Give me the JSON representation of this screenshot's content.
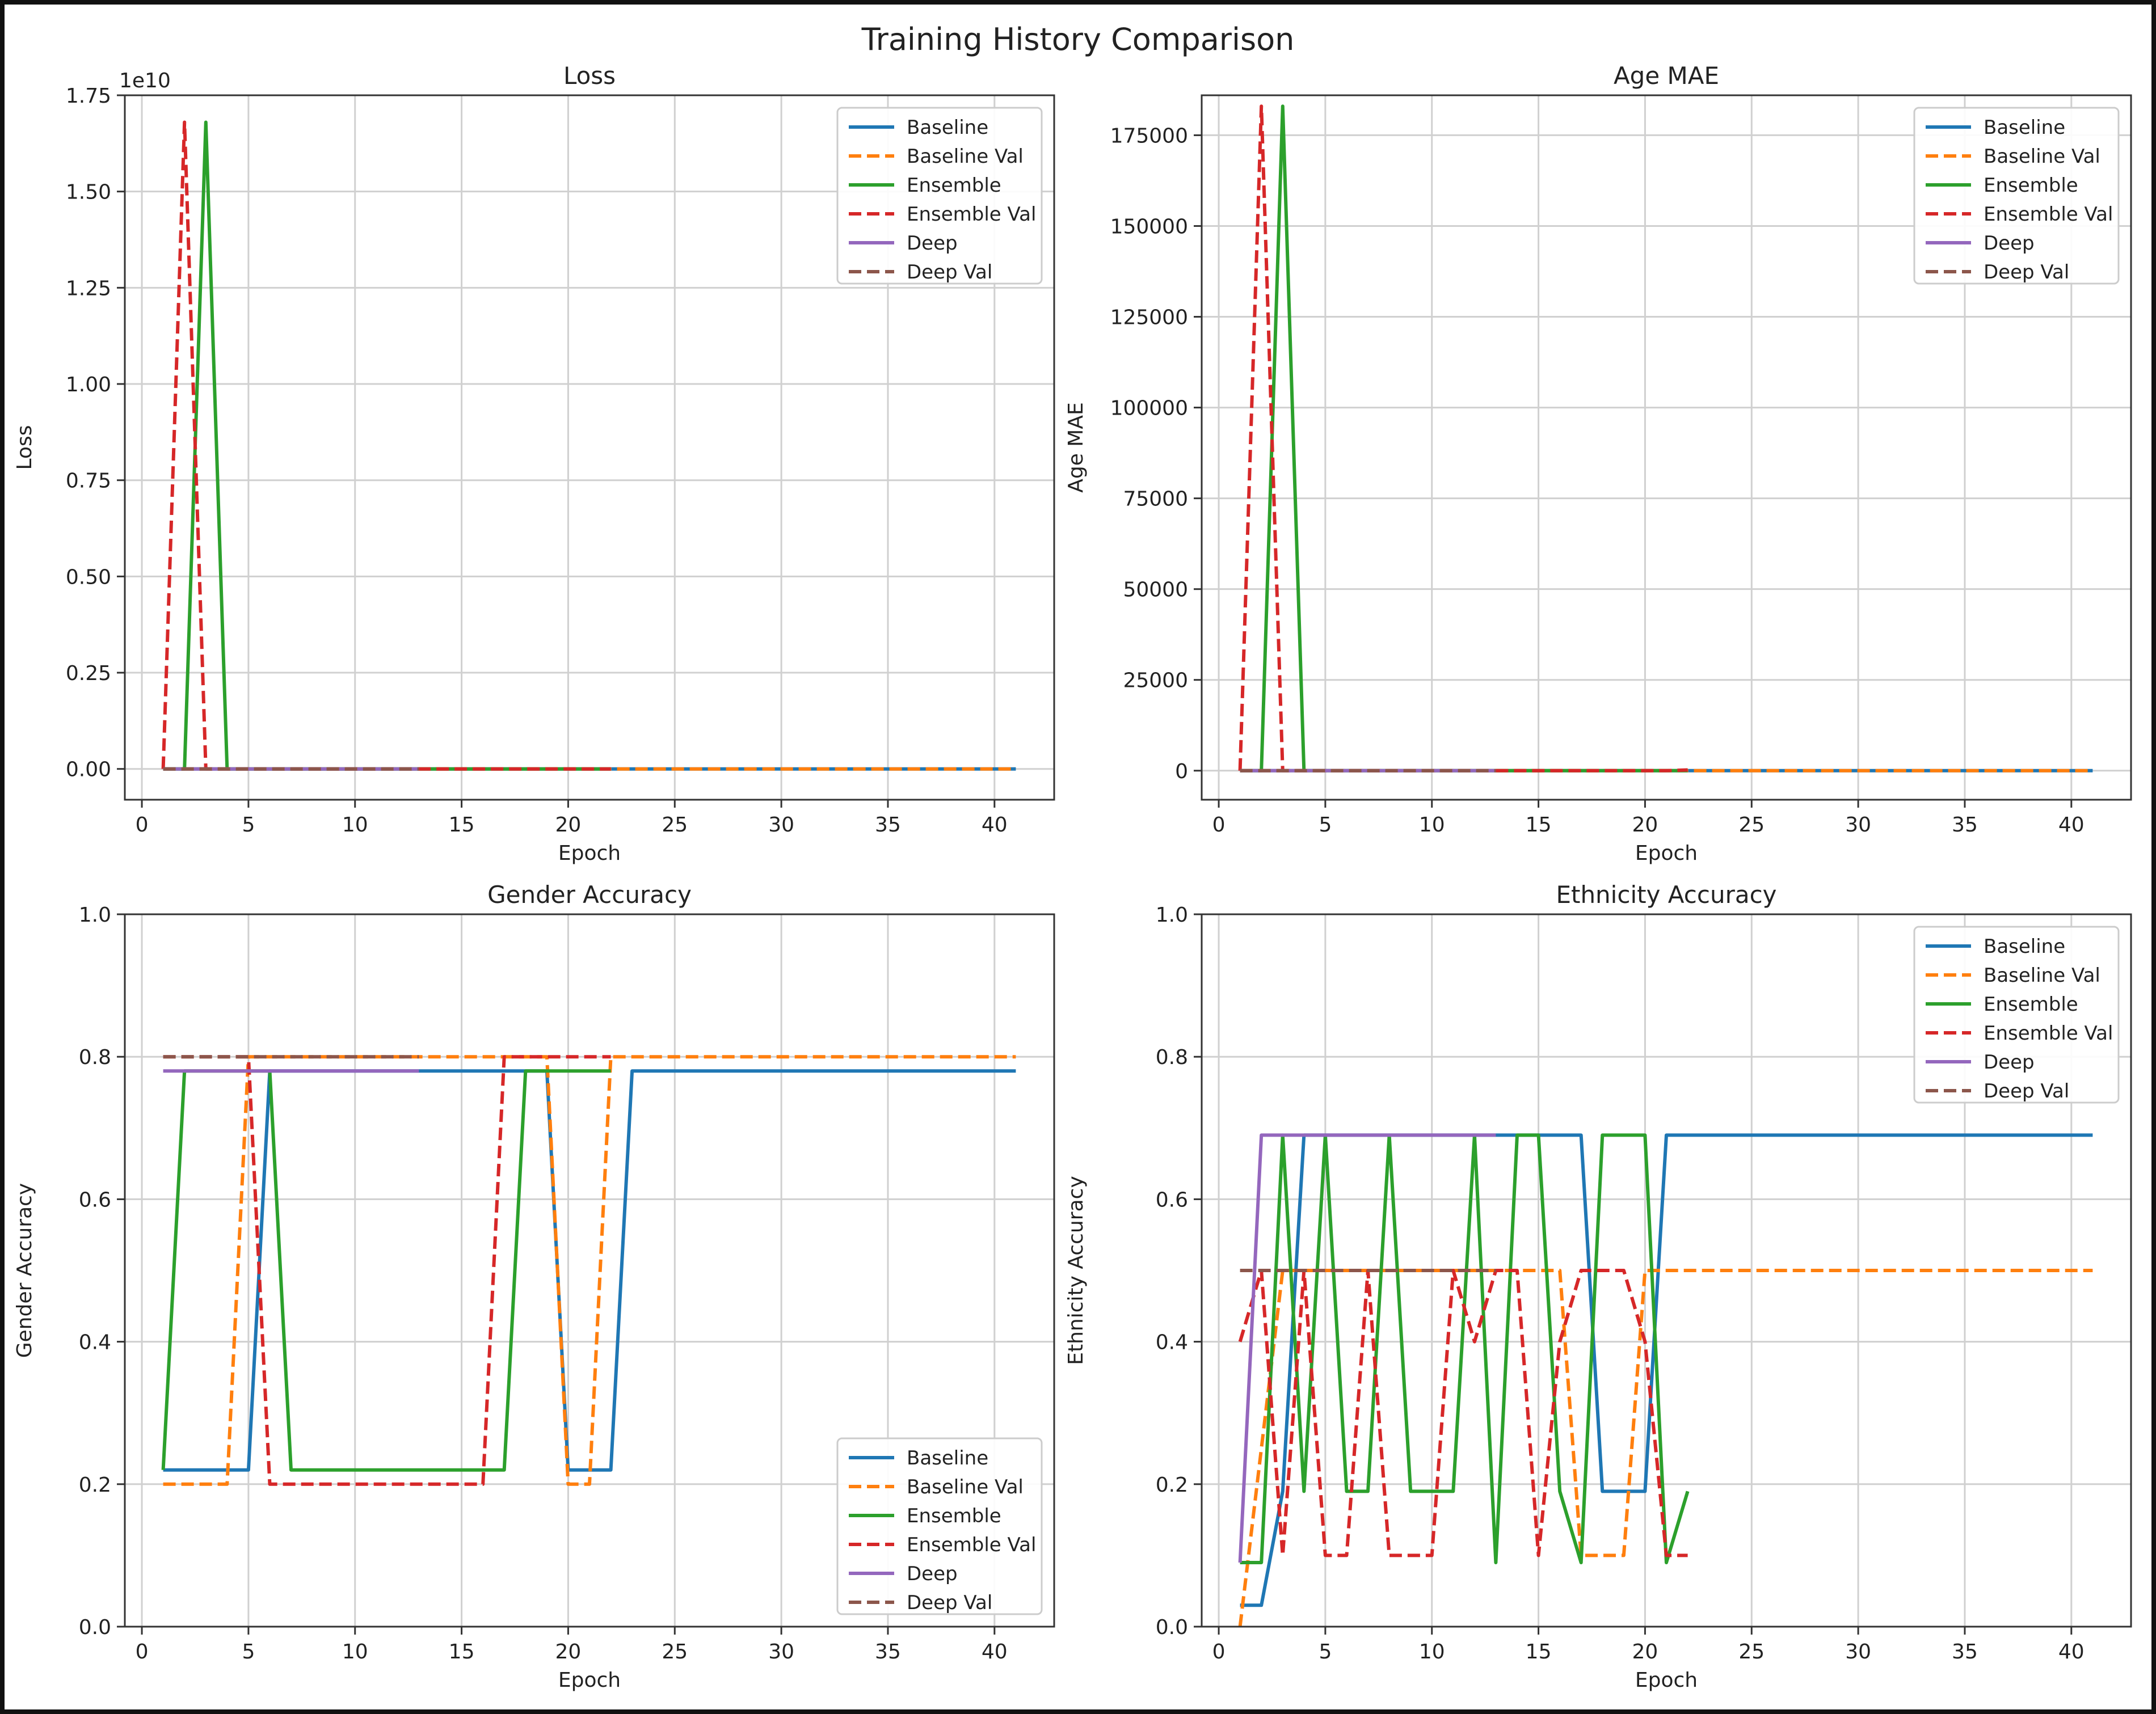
{
  "figure": {
    "title": "Training History Comparison"
  },
  "colors": {
    "Baseline": "#1f77b4",
    "Baseline Val": "#ff7f0e",
    "Ensemble": "#2ca02c",
    "Ensemble Val": "#d62728",
    "Deep": "#9467bd",
    "Deep Val": "#8c564b"
  },
  "chart_data": [
    {
      "type": "line",
      "title": "Loss",
      "xlabel": "Epoch",
      "ylabel": "Loss",
      "scale_label": "1e10",
      "xlim": [
        -0.8,
        42.8
      ],
      "ylim": [
        -0.08,
        1.75
      ],
      "xticks": [
        0,
        5,
        10,
        15,
        20,
        25,
        30,
        35,
        40
      ],
      "yticks": [
        0.0,
        0.25,
        0.5,
        0.75,
        1.0,
        1.25,
        1.5,
        1.75
      ],
      "ytick_labels": [
        "0.00",
        "0.25",
        "0.50",
        "0.75",
        "1.00",
        "1.25",
        "1.50",
        "1.75"
      ],
      "grid": true,
      "legend": "top-right",
      "series": [
        {
          "name": "Baseline",
          "dashed": false,
          "x": [
            1,
            41
          ],
          "y": [
            0,
            0
          ]
        },
        {
          "name": "Baseline Val",
          "dashed": true,
          "x": [
            1,
            41
          ],
          "y": [
            0,
            0
          ]
        },
        {
          "name": "Ensemble",
          "dashed": false,
          "x": [
            1,
            2,
            3,
            4,
            22
          ],
          "y": [
            0,
            0,
            1.68,
            0,
            0
          ]
        },
        {
          "name": "Ensemble Val",
          "dashed": true,
          "x": [
            1,
            2,
            3,
            22
          ],
          "y": [
            0,
            1.68,
            0,
            0
          ]
        },
        {
          "name": "Deep",
          "dashed": false,
          "x": [
            1,
            13
          ],
          "y": [
            0,
            0
          ]
        },
        {
          "name": "Deep Val",
          "dashed": true,
          "x": [
            1,
            13
          ],
          "y": [
            0,
            0
          ]
        }
      ]
    },
    {
      "type": "line",
      "title": "Age MAE",
      "xlabel": "Epoch",
      "ylabel": "Age MAE",
      "xlim": [
        -0.8,
        42.8
      ],
      "ylim": [
        -8000,
        186000
      ],
      "xticks": [
        0,
        5,
        10,
        15,
        20,
        25,
        30,
        35,
        40
      ],
      "yticks": [
        0,
        25000,
        50000,
        75000,
        100000,
        125000,
        150000,
        175000
      ],
      "ytick_labels": [
        "0",
        "25000",
        "50000",
        "75000",
        "100000",
        "125000",
        "150000",
        "175000"
      ],
      "grid": true,
      "legend": "top-right",
      "series": [
        {
          "name": "Baseline",
          "dashed": false,
          "x": [
            1,
            41
          ],
          "y": [
            0,
            0
          ]
        },
        {
          "name": "Baseline Val",
          "dashed": true,
          "x": [
            1,
            41
          ],
          "y": [
            0,
            0
          ]
        },
        {
          "name": "Ensemble",
          "dashed": false,
          "x": [
            1,
            2,
            3,
            4,
            22
          ],
          "y": [
            0,
            0,
            183000,
            0,
            0
          ]
        },
        {
          "name": "Ensemble Val",
          "dashed": true,
          "x": [
            1,
            2,
            3,
            21,
            22
          ],
          "y": [
            0,
            183000,
            0,
            0,
            200
          ]
        },
        {
          "name": "Deep",
          "dashed": false,
          "x": [
            1,
            13
          ],
          "y": [
            0,
            0
          ]
        },
        {
          "name": "Deep Val",
          "dashed": true,
          "x": [
            1,
            13
          ],
          "y": [
            0,
            0
          ]
        }
      ]
    },
    {
      "type": "line",
      "title": "Gender Accuracy",
      "xlabel": "Epoch",
      "ylabel": "Gender Accuracy",
      "xlim": [
        -0.8,
        42.8
      ],
      "ylim": [
        0.0,
        1.0
      ],
      "xticks": [
        0,
        5,
        10,
        15,
        20,
        25,
        30,
        35,
        40
      ],
      "yticks": [
        0.0,
        0.2,
        0.4,
        0.6,
        0.8,
        1.0
      ],
      "ytick_labels": [
        "0.0",
        "0.2",
        "0.4",
        "0.6",
        "0.8",
        "1.0"
      ],
      "grid": true,
      "legend": "bottom-right",
      "series": [
        {
          "name": "Baseline",
          "dashed": false,
          "x": [
            1,
            5,
            6,
            18,
            19,
            20,
            22,
            23,
            41
          ],
          "y": [
            0.22,
            0.22,
            0.78,
            0.78,
            0.78,
            0.22,
            0.22,
            0.78,
            0.78
          ]
        },
        {
          "name": "Baseline Val",
          "dashed": true,
          "x": [
            1,
            4,
            5,
            19,
            20,
            21,
            22,
            41
          ],
          "y": [
            0.2,
            0.2,
            0.8,
            0.8,
            0.2,
            0.2,
            0.8,
            0.8
          ]
        },
        {
          "name": "Ensemble",
          "dashed": false,
          "x": [
            1,
            2,
            5,
            6,
            7,
            17,
            18,
            22
          ],
          "y": [
            0.22,
            0.78,
            0.78,
            0.78,
            0.22,
            0.22,
            0.78,
            0.78
          ]
        },
        {
          "name": "Ensemble Val",
          "dashed": true,
          "x": [
            1,
            5,
            6,
            16,
            17,
            22
          ],
          "y": [
            0.8,
            0.8,
            0.2,
            0.2,
            0.8,
            0.8
          ]
        },
        {
          "name": "Deep",
          "dashed": false,
          "x": [
            1,
            13
          ],
          "y": [
            0.78,
            0.78
          ]
        },
        {
          "name": "Deep Val",
          "dashed": true,
          "x": [
            1,
            13
          ],
          "y": [
            0.8,
            0.8
          ]
        }
      ]
    },
    {
      "type": "line",
      "title": "Ethnicity Accuracy",
      "xlabel": "Epoch",
      "ylabel": "Ethnicity Accuracy",
      "xlim": [
        -0.8,
        42.8
      ],
      "ylim": [
        0.0,
        1.0
      ],
      "xticks": [
        0,
        5,
        10,
        15,
        20,
        25,
        30,
        35,
        40
      ],
      "yticks": [
        0.0,
        0.2,
        0.4,
        0.6,
        0.8,
        1.0
      ],
      "ytick_labels": [
        "0.0",
        "0.2",
        "0.4",
        "0.6",
        "0.8",
        "1.0"
      ],
      "grid": true,
      "legend": "top-right",
      "series": [
        {
          "name": "Baseline",
          "dashed": false,
          "x": [
            1,
            2,
            3,
            4,
            16,
            17,
            18,
            20,
            21,
            41
          ],
          "y": [
            0.03,
            0.03,
            0.19,
            0.69,
            0.69,
            0.69,
            0.19,
            0.19,
            0.69,
            0.69
          ]
        },
        {
          "name": "Baseline Val",
          "dashed": true,
          "x": [
            1,
            2,
            3,
            4,
            16,
            17,
            19,
            20,
            41
          ],
          "y": [
            0.0,
            0.25,
            0.5,
            0.5,
            0.5,
            0.1,
            0.1,
            0.5,
            0.5
          ]
        },
        {
          "name": "Ensemble",
          "dashed": false,
          "x": [
            1,
            2,
            3,
            4,
            5,
            6,
            7,
            8,
            9,
            11,
            12,
            13,
            14,
            15,
            16,
            17,
            18,
            20,
            21,
            22
          ],
          "y": [
            0.09,
            0.09,
            0.69,
            0.19,
            0.69,
            0.19,
            0.19,
            0.69,
            0.19,
            0.19,
            0.69,
            0.09,
            0.69,
            0.69,
            0.19,
            0.09,
            0.69,
            0.69,
            0.09,
            0.19
          ]
        },
        {
          "name": "Ensemble Val",
          "dashed": true,
          "x": [
            1,
            2,
            3,
            4,
            5,
            6,
            7,
            8,
            9,
            10,
            11,
            12,
            13,
            14,
            15,
            16,
            17,
            18,
            19,
            20,
            21,
            22
          ],
          "y": [
            0.4,
            0.5,
            0.1,
            0.5,
            0.1,
            0.1,
            0.5,
            0.1,
            0.1,
            0.1,
            0.5,
            0.4,
            0.5,
            0.5,
            0.1,
            0.4,
            0.5,
            0.5,
            0.5,
            0.4,
            0.1,
            0.1
          ]
        },
        {
          "name": "Deep",
          "dashed": false,
          "x": [
            1,
            2,
            13
          ],
          "y": [
            0.09,
            0.69,
            0.69
          ]
        },
        {
          "name": "Deep Val",
          "dashed": true,
          "x": [
            1,
            13
          ],
          "y": [
            0.5,
            0.5
          ]
        }
      ]
    }
  ]
}
